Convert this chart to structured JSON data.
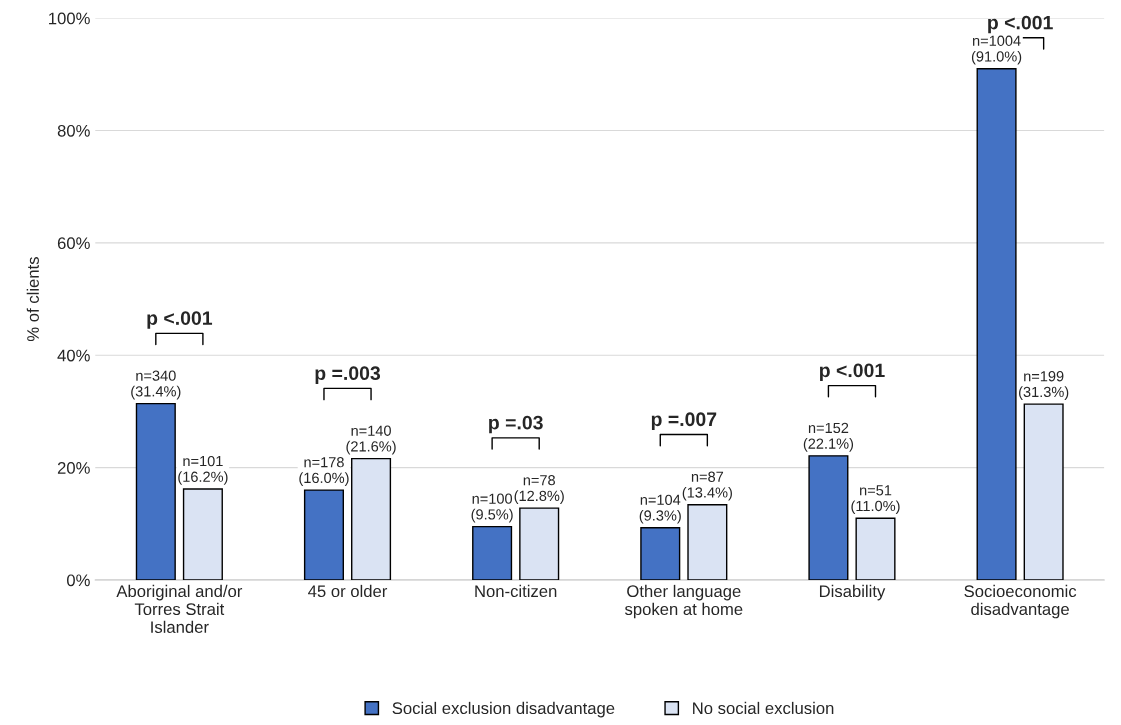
{
  "chart_data": {
    "type": "bar",
    "categories": [
      "Aboriginal and/or\nTorres Strait\nIslander",
      "45 or older",
      "Non-citizen",
      "Other language\nspoken at home",
      "Disability",
      "Socioeconomic\ndisadvantage"
    ],
    "series": [
      {
        "name": "Social exclusion disadvantage",
        "color": "#4472c4",
        "values": [
          31.4,
          16.0,
          9.5,
          9.3,
          22.1,
          91.0
        ],
        "value_labels": [
          "n=340\n(31.4%)",
          "n=178\n(16.0%)",
          "n=100\n(9.5%)",
          "n=104\n(9.3%)",
          "n=152\n(22.1%)",
          "n=1004\n(91.0%)"
        ]
      },
      {
        "name": "No social exclusion",
        "color": "#dae3f3",
        "values": [
          16.2,
          21.6,
          12.8,
          13.4,
          11.0,
          31.3
        ],
        "value_labels": [
          "n=101\n(16.2%)",
          "n=140\n(21.6%)",
          "n=78\n(12.8%)",
          "n=87\n(13.4%)",
          "n=51\n(11.0%)",
          "n=199\n(31.3%)"
        ]
      }
    ],
    "ylabel": "% of clients",
    "ylim": [
      0,
      100
    ],
    "yticks": [
      {
        "value": 0,
        "label": "0%"
      },
      {
        "value": 20,
        "label": "20%"
      },
      {
        "value": 40,
        "label": "40%"
      },
      {
        "value": 60,
        "label": "60%"
      },
      {
        "value": 80,
        "label": "80%"
      },
      {
        "value": 100,
        "label": "100%"
      }
    ],
    "grid": "y",
    "legend": "bottom",
    "annotations": [
      "p <.001",
      "p =.003",
      "p =.03",
      "p =.007",
      "p <.001",
      "p <.001"
    ]
  }
}
